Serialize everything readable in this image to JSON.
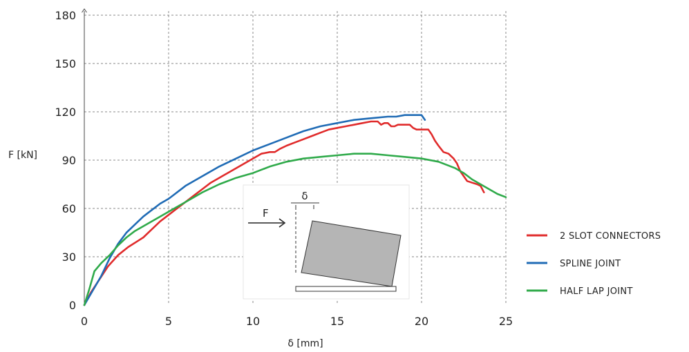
{
  "chart_data": {
    "type": "line",
    "xlabel": "δ [mm]",
    "ylabel": "F [kN]",
    "xlim": [
      0,
      25
    ],
    "ylim": [
      0,
      180
    ],
    "xticks": [
      0,
      5,
      10,
      15,
      20,
      25
    ],
    "yticks": [
      0,
      30,
      60,
      90,
      120,
      150,
      180
    ],
    "grid": true,
    "legend_position": "right",
    "series": [
      {
        "name": "2 SLOT CONNECTORS",
        "color": "#e02b2b",
        "x": [
          0,
          0.4,
          0.9,
          1.4,
          2.0,
          2.6,
          3.2,
          3.5,
          4.0,
          4.5,
          5.0,
          5.5,
          6.0,
          6.5,
          7.0,
          7.5,
          8.0,
          8.5,
          9.0,
          9.5,
          10.0,
          10.5,
          11.0,
          11.3,
          11.6,
          12.0,
          12.5,
          13.0,
          13.5,
          14.0,
          14.5,
          15.0,
          15.5,
          16.0,
          16.5,
          17.0,
          17.4,
          17.6,
          17.8,
          18.0,
          18.2,
          18.4,
          18.6,
          19.0,
          19.3,
          19.5,
          19.7,
          20.0,
          20.4,
          20.6,
          20.8,
          21.0,
          21.3,
          21.6,
          21.9,
          22.1,
          22.3,
          22.5,
          22.7,
          23.0,
          23.3,
          23.5,
          23.7
        ],
        "y": [
          0,
          8,
          16,
          24,
          31,
          36,
          40,
          42,
          47,
          52,
          56,
          60,
          64,
          68,
          72,
          76,
          79,
          82,
          85,
          88,
          91,
          94,
          95,
          95,
          97,
          99,
          101,
          103,
          105,
          107,
          109,
          110,
          111,
          112,
          113,
          114,
          114,
          112,
          113,
          113,
          111,
          111,
          112,
          112,
          112,
          110,
          109,
          109,
          109,
          106,
          102,
          99,
          95,
          94,
          91,
          88,
          83,
          80,
          77,
          76,
          75,
          74,
          70
        ]
      },
      {
        "name": "SPLINE JOINT",
        "color": "#1f6bb5",
        "x": [
          0,
          0.5,
          1.0,
          1.5,
          2.0,
          2.5,
          3.0,
          3.5,
          4.0,
          4.5,
          5.0,
          5.5,
          6.0,
          7.0,
          8.0,
          9.0,
          10.0,
          11.0,
          12.0,
          13.0,
          14.0,
          15.0,
          16.0,
          17.0,
          18.0,
          18.5,
          19.0,
          19.5,
          19.8,
          20.0,
          20.2
        ],
        "y": [
          0,
          9,
          18,
          29,
          38,
          45,
          50,
          55,
          59,
          63,
          66,
          70,
          74,
          80,
          86,
          91,
          96,
          100,
          104,
          108,
          111,
          113,
          115,
          116,
          117,
          117,
          118,
          118,
          118,
          118,
          115
        ]
      },
      {
        "name": "HALF LAP JOINT",
        "color": "#2faa4a",
        "x": [
          0,
          0.3,
          0.6,
          1.0,
          1.5,
          2.0,
          2.5,
          3.0,
          3.5,
          4.0,
          5.0,
          6.0,
          7.0,
          8.0,
          9.0,
          10.0,
          11.0,
          12.0,
          13.0,
          14.0,
          15.0,
          16.0,
          17.0,
          18.0,
          19.0,
          20.0,
          21.0,
          22.0,
          22.5,
          23.0,
          23.5,
          24.0,
          24.5,
          25.0
        ],
        "y": [
          0,
          10,
          21,
          26,
          31,
          37,
          42,
          46,
          49,
          52,
          58,
          64,
          70,
          75,
          79,
          82,
          86,
          89,
          91,
          92,
          93,
          94,
          94,
          93,
          92,
          91,
          89,
          85,
          82,
          78,
          75,
          72,
          69,
          67
        ]
      }
    ]
  },
  "inset": {
    "force_label": "F",
    "displacement_label": "δ"
  }
}
